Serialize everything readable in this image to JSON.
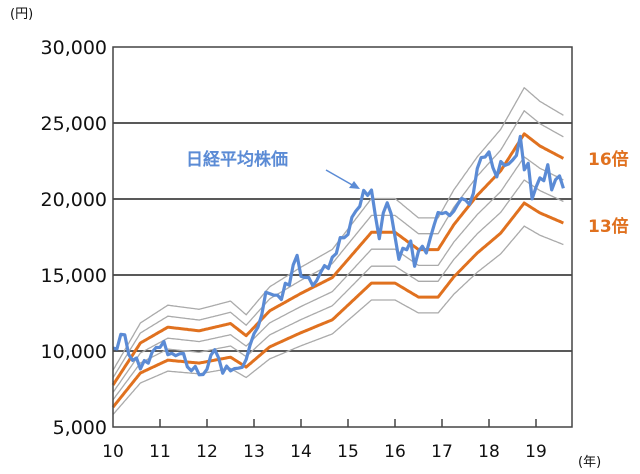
{
  "chart_data": {
    "type": "line",
    "y_unit_label": "(円)",
    "x_unit_label": "(年)",
    "x_tick_labels": [
      "10",
      "11",
      "12",
      "13",
      "14",
      "15",
      "16",
      "17",
      "18",
      "19"
    ],
    "y_tick_labels": [
      "5,000",
      "10,000",
      "15,000",
      "20,000",
      "25,000",
      "30,000"
    ],
    "y_ticks": [
      5000,
      10000,
      15000,
      20000,
      25000,
      30000
    ],
    "ylim": [
      5000,
      30000
    ],
    "xlim": [
      "2010-01",
      "2019-10"
    ],
    "grid": "horizontal",
    "colors": {
      "nikkei": "#5b8bd5",
      "highlight_band": "#e0711f",
      "band": "#aaaaaa",
      "grid": "#222222"
    },
    "annotations": {
      "nikkei_label": "日経平均株価",
      "band_high_label": "16倍",
      "band_low_label": "13倍"
    },
    "per_bands": {
      "multiples": [
        12,
        13,
        14,
        15,
        16,
        17,
        18
      ],
      "highlighted": [
        13,
        16
      ]
    },
    "eps": {
      "dates": [
        "2010-01",
        "2010-08",
        "2011-03",
        "2011-11",
        "2012-07",
        "2012-11",
        "2013-05",
        "2014-01",
        "2014-09",
        "2015-07",
        "2016-01",
        "2016-07",
        "2016-12",
        "2017-04",
        "2017-10",
        "2018-04",
        "2018-10",
        "2019-02",
        "2019-08"
      ],
      "values": [
        485,
        658,
        723,
        708,
        738,
        688,
        790,
        862,
        927,
        1113,
        1113,
        1042,
        1042,
        1144,
        1265,
        1366,
        1518,
        1468,
        1417
      ]
    },
    "series": [
      {
        "name": "日経平均株価",
        "start": "2010-01",
        "frequency": "monthly",
        "values": [
          10198,
          10126,
          11089,
          11057,
          9768,
          9382,
          9537,
          8824,
          9369,
          9202,
          9937,
          10228,
          10237,
          10624,
          9755,
          9849,
          9693,
          9816,
          9833,
          8955,
          8700,
          8988,
          8434,
          8455,
          8802,
          9723,
          10083,
          9520,
          8542,
          9006,
          8695,
          8839,
          8870,
          8928,
          9446,
          10395,
          11138,
          11559,
          12397,
          13860,
          13774,
          13677,
          13668,
          13388,
          14455,
          14327,
          15661,
          16291,
          14914,
          14841,
          14827,
          14304,
          14632,
          15162,
          15620,
          15425,
          16173,
          16413,
          17459,
          17450,
          17674,
          18797,
          19206,
          19520,
          20563,
          20235,
          20585,
          18890,
          17388,
          19083,
          19747,
          19033,
          17518,
          16026,
          16758,
          16666,
          17234,
          15575,
          16569,
          16887,
          16449,
          17425,
          18308,
          19114,
          19041,
          19118,
          18909,
          19196,
          19650,
          20033,
          19925,
          19646,
          20356,
          22011,
          22724,
          22764,
          23098,
          22068,
          21454,
          22467,
          22201,
          22304,
          22553,
          22865,
          24120,
          21920,
          22351,
          20014,
          20773,
          21385,
          21205,
          22258,
          20601,
          21275,
          21521,
          20704
        ]
      }
    ]
  }
}
